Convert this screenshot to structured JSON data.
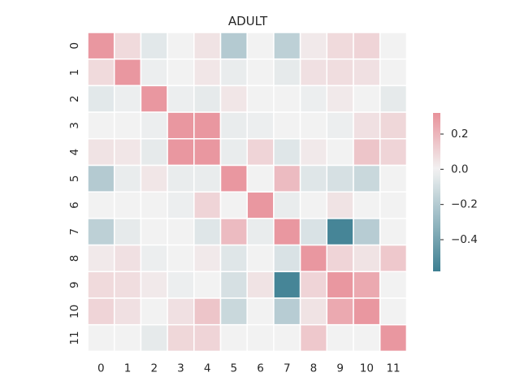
{
  "chart_data": {
    "type": "heatmap",
    "title": "ADULT",
    "x_tick_labels": [
      "0",
      "1",
      "2",
      "3",
      "4",
      "5",
      "6",
      "7",
      "8",
      "9",
      "10",
      "11"
    ],
    "y_tick_labels": [
      "0",
      "1",
      "2",
      "3",
      "4",
      "5",
      "6",
      "7",
      "8",
      "9",
      "10",
      "11"
    ],
    "values": [
      [
        0.3,
        0.08,
        -0.05,
        0.0,
        0.05,
        -0.2,
        0.0,
        -0.17,
        0.03,
        0.08,
        0.1,
        0.0
      ],
      [
        0.08,
        0.3,
        -0.02,
        0.0,
        0.04,
        -0.03,
        0.0,
        -0.04,
        0.06,
        0.07,
        0.06,
        0.0
      ],
      [
        -0.05,
        -0.02,
        0.3,
        -0.02,
        -0.04,
        0.04,
        0.0,
        0.0,
        -0.02,
        0.03,
        0.0,
        -0.04
      ],
      [
        0.0,
        0.0,
        -0.02,
        0.3,
        0.3,
        -0.03,
        -0.02,
        0.0,
        0.0,
        -0.02,
        0.06,
        0.09
      ],
      [
        0.05,
        0.04,
        -0.04,
        0.3,
        0.3,
        -0.03,
        0.1,
        -0.06,
        0.03,
        0.0,
        0.15,
        0.1
      ],
      [
        -0.2,
        -0.03,
        0.04,
        -0.03,
        -0.03,
        0.3,
        0.0,
        0.18,
        -0.06,
        -0.09,
        -0.13,
        0.0
      ],
      [
        0.0,
        0.0,
        0.0,
        -0.02,
        0.1,
        0.0,
        0.3,
        -0.03,
        0.0,
        0.05,
        0.0,
        0.0
      ],
      [
        -0.17,
        -0.04,
        0.0,
        0.0,
        -0.06,
        0.18,
        -0.03,
        0.3,
        -0.08,
        -0.55,
        -0.19,
        0.0
      ],
      [
        0.03,
        0.06,
        -0.02,
        0.0,
        0.03,
        -0.06,
        0.0,
        -0.08,
        0.3,
        0.1,
        0.05,
        0.14
      ],
      [
        0.08,
        0.07,
        0.03,
        -0.02,
        0.0,
        -0.09,
        0.05,
        -0.55,
        0.1,
        0.3,
        0.24,
        0.0
      ],
      [
        0.1,
        0.06,
        0.0,
        0.06,
        0.15,
        -0.13,
        0.0,
        -0.19,
        0.05,
        0.24,
        0.3,
        0.0
      ],
      [
        0.0,
        0.0,
        -0.04,
        0.09,
        0.1,
        0.0,
        0.0,
        0.0,
        0.14,
        0.0,
        0.0,
        0.3
      ]
    ],
    "vmin": -0.58,
    "vmax": 0.32,
    "colormap": {
      "negative": "#3d7f92",
      "center": "#f2f2f2",
      "positive": "#e8919a"
    },
    "cell_border_color": "#ffffff",
    "colorbar": {
      "ticks": [
        -0.4,
        -0.2,
        0.0,
        0.2
      ],
      "tick_labels": [
        "−0.4",
        "−0.2",
        "0.0",
        "0.2"
      ]
    },
    "xlabel": "",
    "ylabel": ""
  }
}
